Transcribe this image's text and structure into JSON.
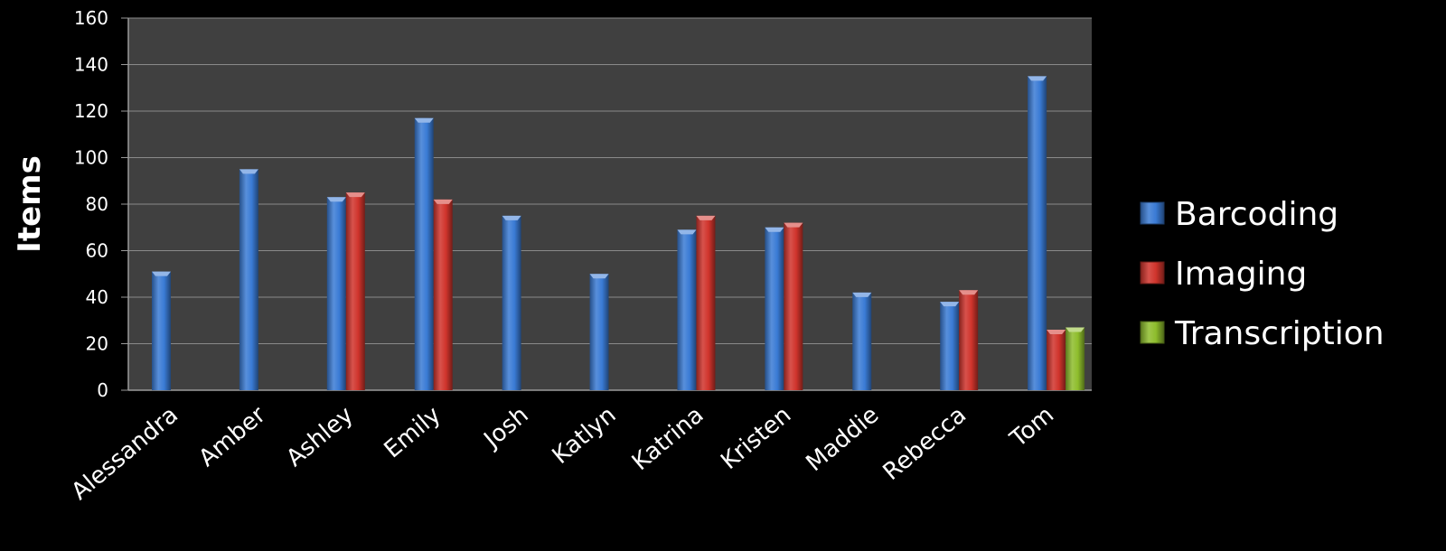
{
  "chart_data": {
    "type": "bar",
    "title": "",
    "xlabel": "",
    "ylabel": "Items",
    "ylim": [
      0,
      160
    ],
    "yticks": [
      0,
      20,
      40,
      60,
      80,
      100,
      120,
      140,
      160
    ],
    "grid": true,
    "legend_position": "right",
    "categories": [
      "Alessandra",
      "Amber",
      "Ashley",
      "Emily",
      "Josh",
      "Katlyn",
      "Katrina",
      "Kristen",
      "Maddie",
      "Rebecca",
      "Tom"
    ],
    "series": [
      {
        "name": "Barcoding",
        "color": "#3a7bd5",
        "values": [
          51,
          95,
          83,
          117,
          75,
          50,
          69,
          70,
          42,
          38,
          135
        ]
      },
      {
        "name": "Imaging",
        "color": "#d0342c",
        "values": [
          null,
          null,
          85,
          82,
          null,
          null,
          75,
          72,
          null,
          43,
          26
        ]
      },
      {
        "name": "Transcription",
        "color": "#8ebd2c",
        "values": [
          null,
          null,
          null,
          null,
          null,
          null,
          null,
          null,
          null,
          null,
          27
        ]
      }
    ]
  }
}
